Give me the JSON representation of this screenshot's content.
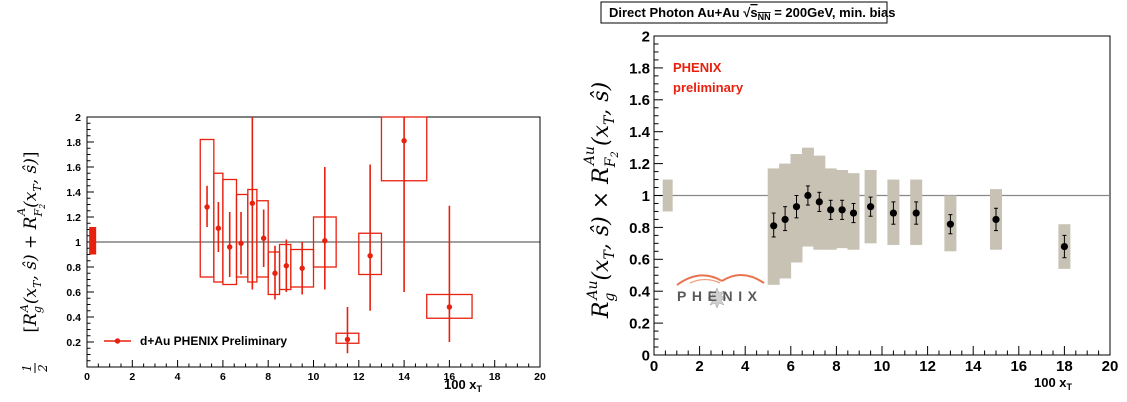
{
  "chart_data": [
    {
      "type": "scatter",
      "xlabel": "100 x_T",
      "xlabel_main": "100 x",
      "xlabel_sub": "T",
      "ylabel": "1/2 [R_g^A(x_T, ŝ) + R_F2^A(x_T, ŝ)]",
      "xlim": [
        0,
        20
      ],
      "ylim": [
        0,
        2
      ],
      "xticks": [
        0,
        2,
        4,
        6,
        8,
        10,
        12,
        14,
        16,
        18,
        20
      ],
      "yticks": [
        0.2,
        0.4,
        0.6,
        0.8,
        1,
        1.2,
        1.4,
        1.6,
        1.8,
        2
      ],
      "reference_line": 1,
      "normalization_box": {
        "x": 0.25,
        "ylow": 0.9,
        "yhigh": 1.12,
        "color": "#e8200e"
      },
      "legend": {
        "label": "d+Au PHENIX Preliminary",
        "placement": "bottom-left"
      },
      "series": [
        {
          "color": "#e8200e",
          "points": [
            {
              "x": 5.3,
              "y": 1.28,
              "elow": 1.12,
              "ehigh": 1.45,
              "sxlow": 5.0,
              "sxhigh": 5.6,
              "sylow": 0.72,
              "syhigh": 1.82
            },
            {
              "x": 5.8,
              "y": 1.11,
              "elow": 0.92,
              "ehigh": 1.32,
              "sxlow": 5.6,
              "sxhigh": 6.0,
              "sylow": 0.68,
              "syhigh": 1.55
            },
            {
              "x": 6.3,
              "y": 0.96,
              "elow": 0.72,
              "ehigh": 1.24,
              "sxlow": 6.0,
              "sxhigh": 6.6,
              "sylow": 0.66,
              "syhigh": 1.5
            },
            {
              "x": 6.8,
              "y": 0.99,
              "elow": 0.74,
              "ehigh": 1.24,
              "sxlow": 6.6,
              "sxhigh": 7.1,
              "sylow": 0.72,
              "syhigh": 1.38
            },
            {
              "x": 7.3,
              "y": 1.31,
              "elow": 0.62,
              "ehigh": 2.0,
              "sxlow": 7.1,
              "sxhigh": 7.5,
              "sylow": 0.68,
              "syhigh": 1.42
            },
            {
              "x": 7.8,
              "y": 1.03,
              "elow": 0.8,
              "ehigh": 1.26,
              "sxlow": 7.5,
              "sxhigh": 8.0,
              "sylow": 0.72,
              "syhigh": 1.33
            },
            {
              "x": 8.3,
              "y": 0.75,
              "elow": 0.54,
              "ehigh": 0.97,
              "sxlow": 8.0,
              "sxhigh": 8.5,
              "sylow": 0.58,
              "syhigh": 0.92
            },
            {
              "x": 8.8,
              "y": 0.81,
              "elow": 0.6,
              "ehigh": 1.02,
              "sxlow": 8.5,
              "sxhigh": 9.0,
              "sylow": 0.62,
              "syhigh": 0.98
            },
            {
              "x": 9.5,
              "y": 0.79,
              "elow": 0.58,
              "ehigh": 1.0,
              "sxlow": 9.0,
              "sxhigh": 10.0,
              "sylow": 0.64,
              "syhigh": 0.94
            },
            {
              "x": 10.5,
              "y": 1.01,
              "elow": 0.62,
              "ehigh": 1.6,
              "sxlow": 10.0,
              "sxhigh": 11.0,
              "sylow": 0.8,
              "syhigh": 1.2
            },
            {
              "x": 11.5,
              "y": 0.22,
              "elow": 0.11,
              "ehigh": 0.48,
              "sxlow": 11.0,
              "sxhigh": 12.0,
              "sylow": 0.19,
              "syhigh": 0.27
            },
            {
              "x": 12.5,
              "y": 0.89,
              "elow": 0.45,
              "ehigh": 1.62,
              "sxlow": 12.0,
              "sxhigh": 13.0,
              "sylow": 0.74,
              "syhigh": 1.07
            },
            {
              "x": 14.0,
              "y": 1.81,
              "elow": 0.6,
              "ehigh": 2.0,
              "sxlow": 13.0,
              "sxhigh": 15.0,
              "sylow": 1.49,
              "syhigh": 2.0
            },
            {
              "x": 16.0,
              "y": 0.48,
              "elow": 0.2,
              "ehigh": 1.29,
              "sxlow": 15.0,
              "sxhigh": 17.0,
              "sylow": 0.39,
              "syhigh": 0.58
            }
          ]
        }
      ]
    },
    {
      "type": "scatter",
      "title": "Direct Photon Au+Au √s_NN = 200GeV, min. bias",
      "title_pre": "Direct Photon Au+Au ",
      "title_sqrt_s": "s",
      "title_sqrt_sub": "NN",
      "title_post": " = 200GeV, min. bias",
      "xlabel": "100 x_T",
      "xlabel_main": "100 x",
      "xlabel_sub": "T",
      "ylabel": "R_g^Au(x_T, ŝ) × R_F2^Au(x_T, ŝ)",
      "xlim": [
        0,
        20
      ],
      "ylim": [
        0,
        2
      ],
      "xticks": [
        0,
        2,
        4,
        6,
        8,
        10,
        12,
        14,
        16,
        18,
        20
      ],
      "yticks": [
        0,
        0.2,
        0.4,
        0.6,
        0.8,
        1,
        1.2,
        1.4,
        1.6,
        1.8,
        2
      ],
      "reference_line": 1,
      "normalization_box": {
        "x": 0.6,
        "ylow": 0.9,
        "yhigh": 1.1,
        "color": "#c8c2b4"
      },
      "annotations": {
        "line1": "PHENIX",
        "line2": "preliminary",
        "color": "#e8200e"
      },
      "logo": "PHENIX",
      "series": [
        {
          "color": "#000000",
          "syst_color": "#c8c2b4",
          "points": [
            {
              "x": 5.25,
              "y": 0.81,
              "elow": 0.74,
              "ehigh": 0.89,
              "sylow": 0.44,
              "syhigh": 1.17
            },
            {
              "x": 5.75,
              "y": 0.85,
              "elow": 0.78,
              "ehigh": 0.93,
              "sylow": 0.48,
              "syhigh": 1.2
            },
            {
              "x": 6.25,
              "y": 0.93,
              "elow": 0.86,
              "ehigh": 1.0,
              "sylow": 0.58,
              "syhigh": 1.26
            },
            {
              "x": 6.75,
              "y": 1.0,
              "elow": 0.94,
              "ehigh": 1.06,
              "sylow": 0.68,
              "syhigh": 1.3
            },
            {
              "x": 7.25,
              "y": 0.96,
              "elow": 0.9,
              "ehigh": 1.02,
              "sylow": 0.66,
              "syhigh": 1.25
            },
            {
              "x": 7.75,
              "y": 0.91,
              "elow": 0.85,
              "ehigh": 0.97,
              "sylow": 0.66,
              "syhigh": 1.17
            },
            {
              "x": 8.25,
              "y": 0.91,
              "elow": 0.85,
              "ehigh": 0.97,
              "sylow": 0.67,
              "syhigh": 1.16
            },
            {
              "x": 8.75,
              "y": 0.89,
              "elow": 0.83,
              "ehigh": 0.95,
              "sylow": 0.66,
              "syhigh": 1.14
            },
            {
              "x": 9.5,
              "y": 0.93,
              "elow": 0.87,
              "ehigh": 0.99,
              "sylow": 0.7,
              "syhigh": 1.16
            },
            {
              "x": 10.5,
              "y": 0.89,
              "elow": 0.82,
              "ehigh": 0.96,
              "sylow": 0.69,
              "syhigh": 1.1
            },
            {
              "x": 11.5,
              "y": 0.89,
              "elow": 0.82,
              "ehigh": 0.96,
              "sylow": 0.69,
              "syhigh": 1.1
            },
            {
              "x": 13.0,
              "y": 0.82,
              "elow": 0.76,
              "ehigh": 0.88,
              "sylow": 0.65,
              "syhigh": 1.0
            },
            {
              "x": 15.0,
              "y": 0.85,
              "elow": 0.78,
              "ehigh": 0.92,
              "sylow": 0.66,
              "syhigh": 1.04
            },
            {
              "x": 18.0,
              "y": 0.68,
              "elow": 0.61,
              "ehigh": 0.75,
              "sylow": 0.54,
              "syhigh": 0.82
            }
          ]
        }
      ]
    }
  ]
}
